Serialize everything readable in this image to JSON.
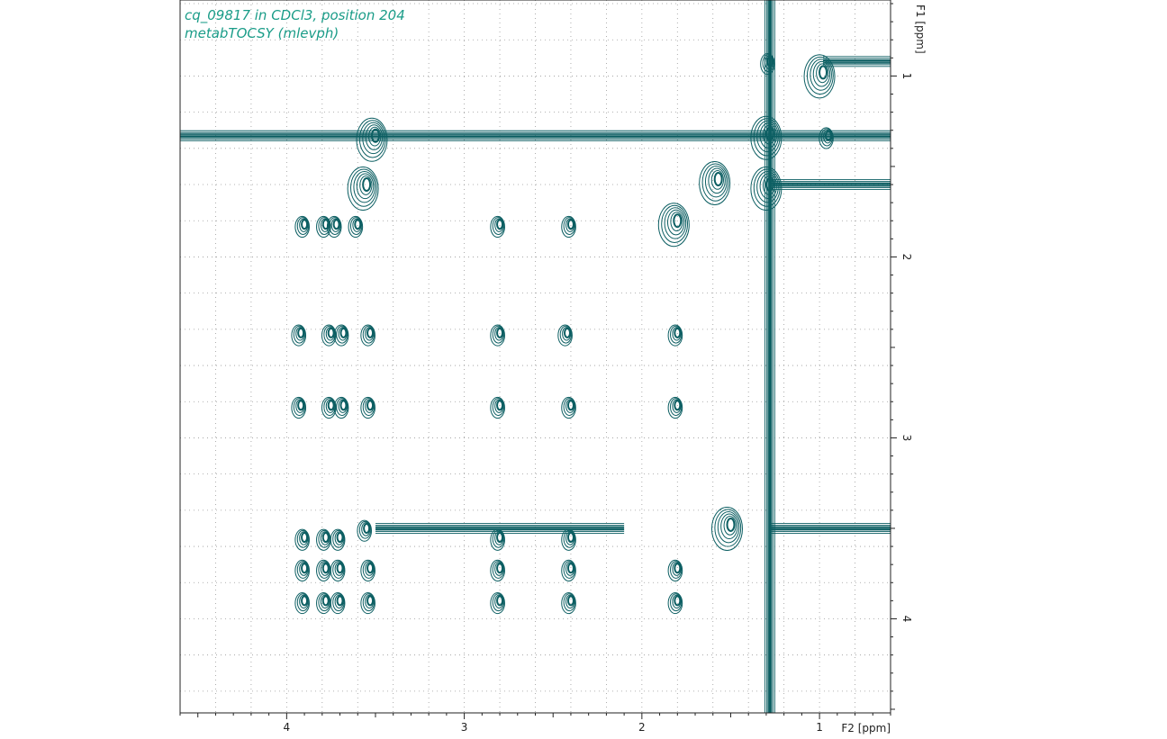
{
  "title_lines": [
    "cq_09817 in CDCl3, position 204",
    "metabTOCSY (mlevph)"
  ],
  "colors": {
    "contour": "#0d5f63",
    "title": "#1a9c88",
    "grid": "#9a9a9a",
    "axis": "#222222"
  },
  "chart_data": {
    "type": "contour-2d-nmr",
    "grid": true,
    "x_axis": {
      "label": "F2 [ppm]",
      "reversed": true,
      "range": [
        4.6,
        0.6
      ],
      "major_ticks": [
        4,
        3,
        2,
        1
      ],
      "major_tick_labels": [
        "4",
        "3",
        "2",
        "1"
      ],
      "minor_step": 0.2
    },
    "y_axis": {
      "label": "F1 [ppm]",
      "reversed": true,
      "range": [
        0.58,
        4.52
      ],
      "major_ticks": [
        1,
        2,
        3,
        4
      ],
      "major_tick_labels": [
        "1",
        "2",
        "3",
        "4"
      ],
      "minor_step": 0.2
    },
    "diagonal_peaks": [
      {
        "x": 0.98,
        "y": 0.98
      },
      {
        "x": 1.57,
        "y": 1.57
      },
      {
        "x": 1.28,
        "y": 1.32
      },
      {
        "x": 1.28,
        "y": 1.6
      },
      {
        "x": 1.8,
        "y": 1.8
      },
      {
        "x": 3.5,
        "y": 1.33
      },
      {
        "x": 3.55,
        "y": 1.6
      },
      {
        "x": 1.5,
        "y": 3.48
      }
    ],
    "cross_peaks": [
      {
        "x": 3.9,
        "y": 1.82
      },
      {
        "x": 3.78,
        "y": 1.82
      },
      {
        "x": 3.72,
        "y": 1.82
      },
      {
        "x": 3.6,
        "y": 1.82
      },
      {
        "x": 2.8,
        "y": 1.82
      },
      {
        "x": 2.4,
        "y": 1.82
      },
      {
        "x": 3.92,
        "y": 2.42
      },
      {
        "x": 3.75,
        "y": 2.42
      },
      {
        "x": 3.68,
        "y": 2.42
      },
      {
        "x": 3.53,
        "y": 2.42
      },
      {
        "x": 2.8,
        "y": 2.42
      },
      {
        "x": 2.42,
        "y": 2.42
      },
      {
        "x": 1.8,
        "y": 2.42
      },
      {
        "x": 3.92,
        "y": 2.82
      },
      {
        "x": 3.75,
        "y": 2.82
      },
      {
        "x": 3.68,
        "y": 2.82
      },
      {
        "x": 3.53,
        "y": 2.82
      },
      {
        "x": 2.8,
        "y": 2.82
      },
      {
        "x": 2.4,
        "y": 2.82
      },
      {
        "x": 1.8,
        "y": 2.82
      },
      {
        "x": 3.9,
        "y": 3.55
      },
      {
        "x": 3.78,
        "y": 3.55
      },
      {
        "x": 3.7,
        "y": 3.55
      },
      {
        "x": 3.55,
        "y": 3.5
      },
      {
        "x": 2.8,
        "y": 3.55
      },
      {
        "x": 2.4,
        "y": 3.55
      },
      {
        "x": 3.9,
        "y": 3.72
      },
      {
        "x": 3.78,
        "y": 3.72
      },
      {
        "x": 3.7,
        "y": 3.72
      },
      {
        "x": 3.53,
        "y": 3.72
      },
      {
        "x": 2.8,
        "y": 3.72
      },
      {
        "x": 2.4,
        "y": 3.72
      },
      {
        "x": 1.8,
        "y": 3.72
      },
      {
        "x": 3.9,
        "y": 3.9
      },
      {
        "x": 3.78,
        "y": 3.9
      },
      {
        "x": 3.7,
        "y": 3.9
      },
      {
        "x": 3.53,
        "y": 3.9
      },
      {
        "x": 2.8,
        "y": 3.9
      },
      {
        "x": 2.4,
        "y": 3.9
      },
      {
        "x": 1.8,
        "y": 3.9
      },
      {
        "x": 1.28,
        "y": 0.92
      },
      {
        "x": 0.95,
        "y": 1.33
      }
    ],
    "ridges": [
      {
        "orientation": "horizontal",
        "at": 1.33,
        "from": 4.6,
        "to": 0.6
      },
      {
        "orientation": "horizontal",
        "at": 3.5,
        "from": 3.5,
        "to": 2.1
      },
      {
        "orientation": "horizontal",
        "at": 3.5,
        "from": 1.28,
        "to": 0.6
      },
      {
        "orientation": "horizontal",
        "at": 0.92,
        "from": 0.98,
        "to": 0.6
      },
      {
        "orientation": "horizontal",
        "at": 1.6,
        "from": 1.28,
        "to": 0.6
      },
      {
        "orientation": "vertical",
        "at": 1.28,
        "from": 0.58,
        "to": 4.52
      }
    ]
  }
}
